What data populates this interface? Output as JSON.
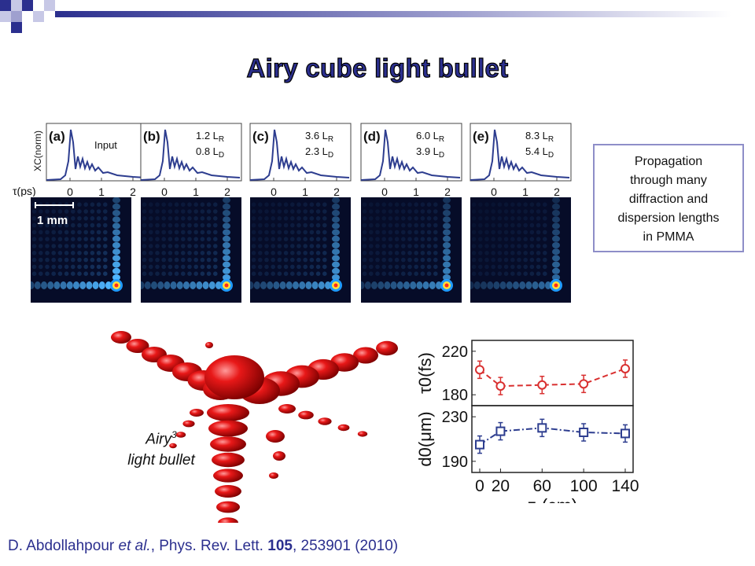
{
  "slide": {
    "title": "Airy cube light bullet",
    "callout_lines": [
      "Propagation",
      "through many",
      "diffraction and",
      "dispersion lengths",
      "in PMMA"
    ],
    "bullet_label_main": "Airy",
    "bullet_label_sup": "3",
    "bullet_label_line2": "light bullet",
    "citation": {
      "authors": "D. Abdollahpour ",
      "etal": "et al.",
      "journal": ", Phys. Rev. Lett. ",
      "volume": "105",
      "rest": ", 253901 (2010)"
    }
  },
  "panels": {
    "ylabel": "XC(norm)",
    "xlabel": "τ(ps)",
    "ticks": [
      "0",
      "1",
      "2"
    ],
    "scale_bar": "1 mm",
    "items": [
      {
        "letter": "(a)",
        "line1": "Input",
        "line2": ""
      },
      {
        "letter": "(b)",
        "line1": "1.2 L",
        "sub1": "R",
        "line2": "0.8 L",
        "sub2": "D"
      },
      {
        "letter": "(c)",
        "line1": "3.6 L",
        "sub1": "R",
        "line2": "2.3 L",
        "sub2": "D"
      },
      {
        "letter": "(d)",
        "line1": "6.0 L",
        "sub1": "R",
        "line2": "3.9 L",
        "sub2": "D"
      },
      {
        "letter": "(e)",
        "line1": "8.3 L",
        "sub1": "R",
        "line2": "5.4 L",
        "sub2": "D"
      }
    ]
  },
  "chart_data": [
    {
      "type": "line",
      "ylabel": "τ0(fs)",
      "x": [
        0,
        20,
        60,
        100,
        140
      ],
      "values": [
        203,
        188,
        189,
        190,
        204
      ],
      "ylim": [
        170,
        230
      ],
      "yticks": [
        180,
        220
      ],
      "color": "#d93030",
      "marker": "circle"
    },
    {
      "type": "line",
      "ylabel": "d0(μm)",
      "xlabel": "z (cm)",
      "x": [
        0,
        20,
        60,
        100,
        140
      ],
      "values": [
        205,
        217,
        220,
        216,
        215
      ],
      "ylim": [
        180,
        240
      ],
      "yticks": [
        190,
        230
      ],
      "xticks": [
        "0",
        "20",
        "60",
        "100",
        "140"
      ],
      "color": "#2d3d8f",
      "marker": "square"
    }
  ]
}
